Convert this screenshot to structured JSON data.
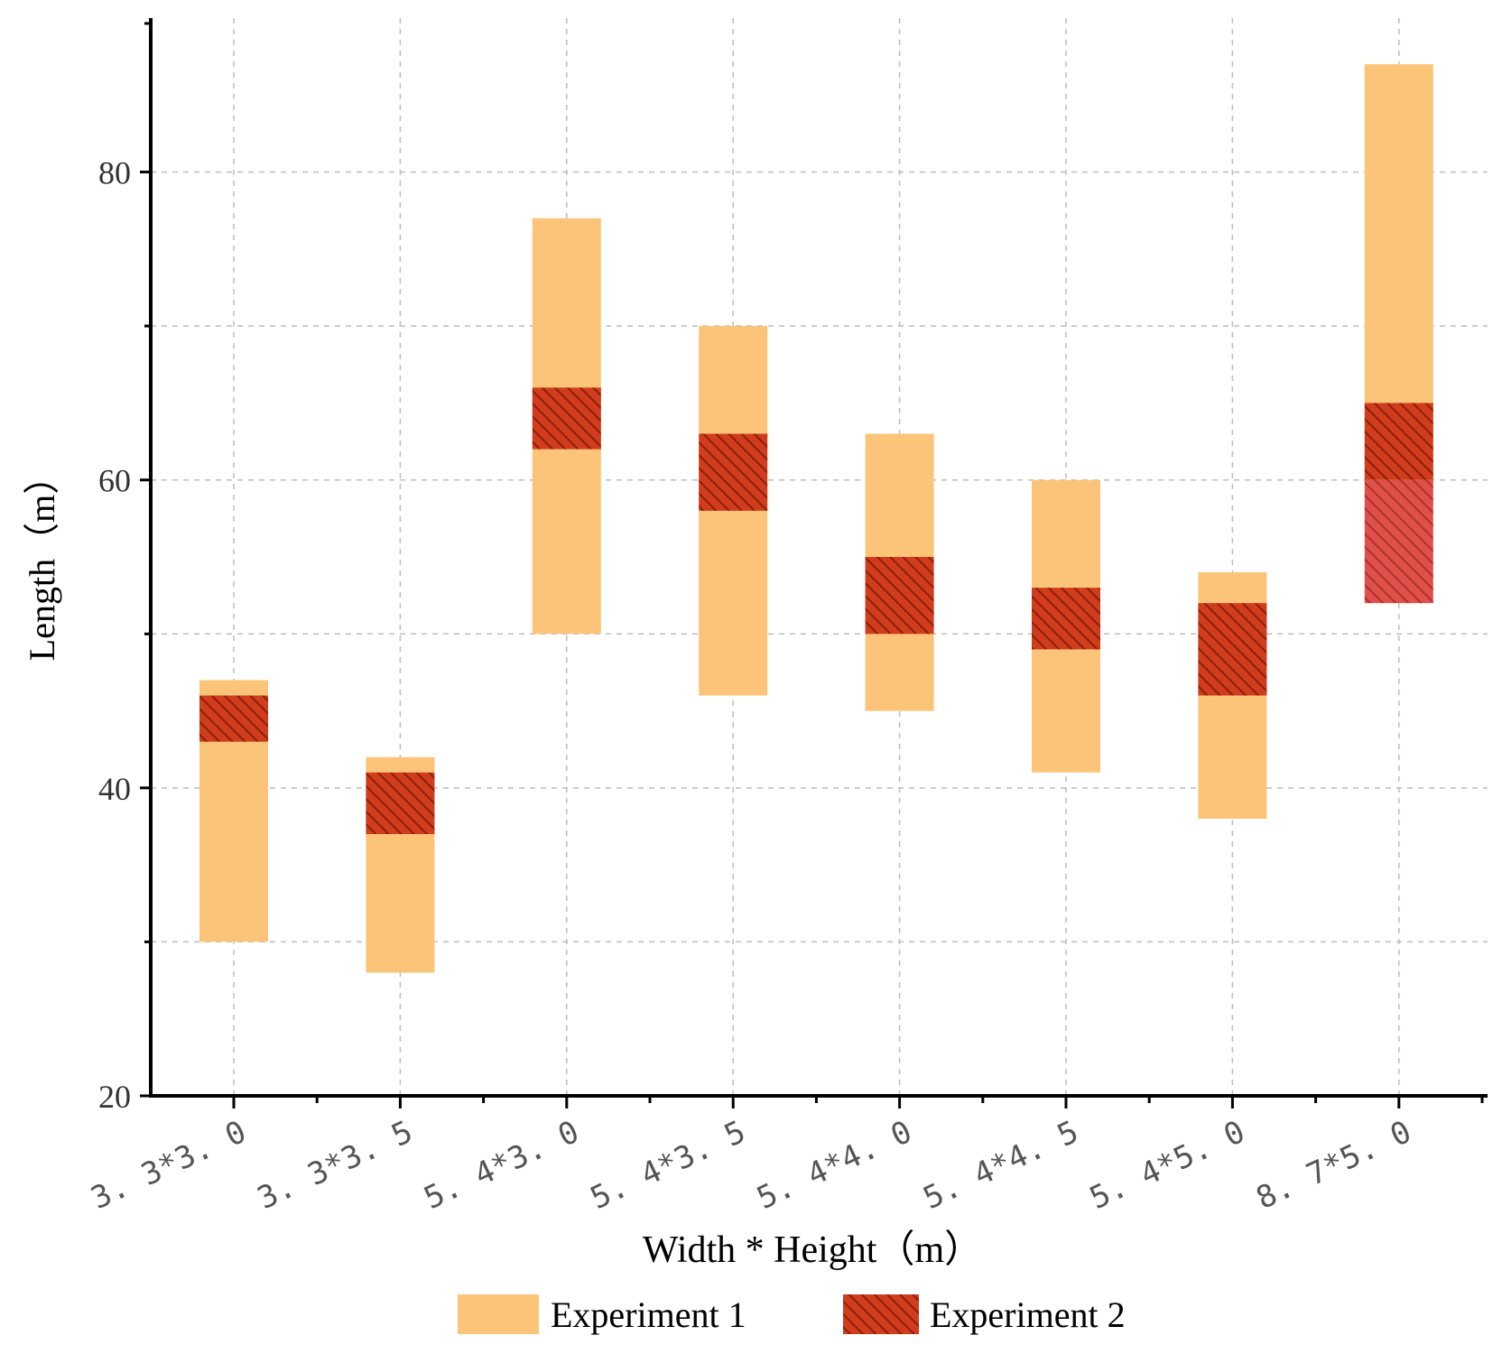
{
  "chart_data": {
    "type": "floating-bar",
    "title": "",
    "xlabel": "Width * Height（m）",
    "ylabel": "Length（m）",
    "ylim": [
      20,
      90
    ],
    "y_ticks_labeled": [
      20,
      40,
      60,
      80
    ],
    "y_ticks_minor": [
      30,
      50,
      70
    ],
    "grid": true,
    "legend_position": "bottom",
    "categories": [
      "3. 3*3. 0",
      "3. 3*3. 5",
      "5. 4*3. 0",
      "5. 4*3. 5",
      "5. 4*4. 0",
      "5. 4*4. 5",
      "5. 4*5. 0",
      "8. 7*5. 0"
    ],
    "series": [
      {
        "name": "Experiment 1",
        "color": "#fcc478",
        "ranges": [
          [
            30,
            47
          ],
          [
            28,
            42
          ],
          [
            50,
            77
          ],
          [
            46,
            70
          ],
          [
            45,
            63
          ],
          [
            41,
            60
          ],
          [
            38,
            54
          ],
          [
            60,
            87
          ]
        ]
      },
      {
        "name": "Experiment 2",
        "color": "#d13c1c",
        "hatch_color": "#8a1f0a",
        "ranges": [
          [
            43,
            46
          ],
          [
            37,
            41
          ],
          [
            62,
            66
          ],
          [
            58,
            63
          ],
          [
            50,
            55
          ],
          [
            49,
            53
          ],
          [
            46,
            52
          ],
          [
            52,
            65
          ]
        ]
      }
    ]
  }
}
